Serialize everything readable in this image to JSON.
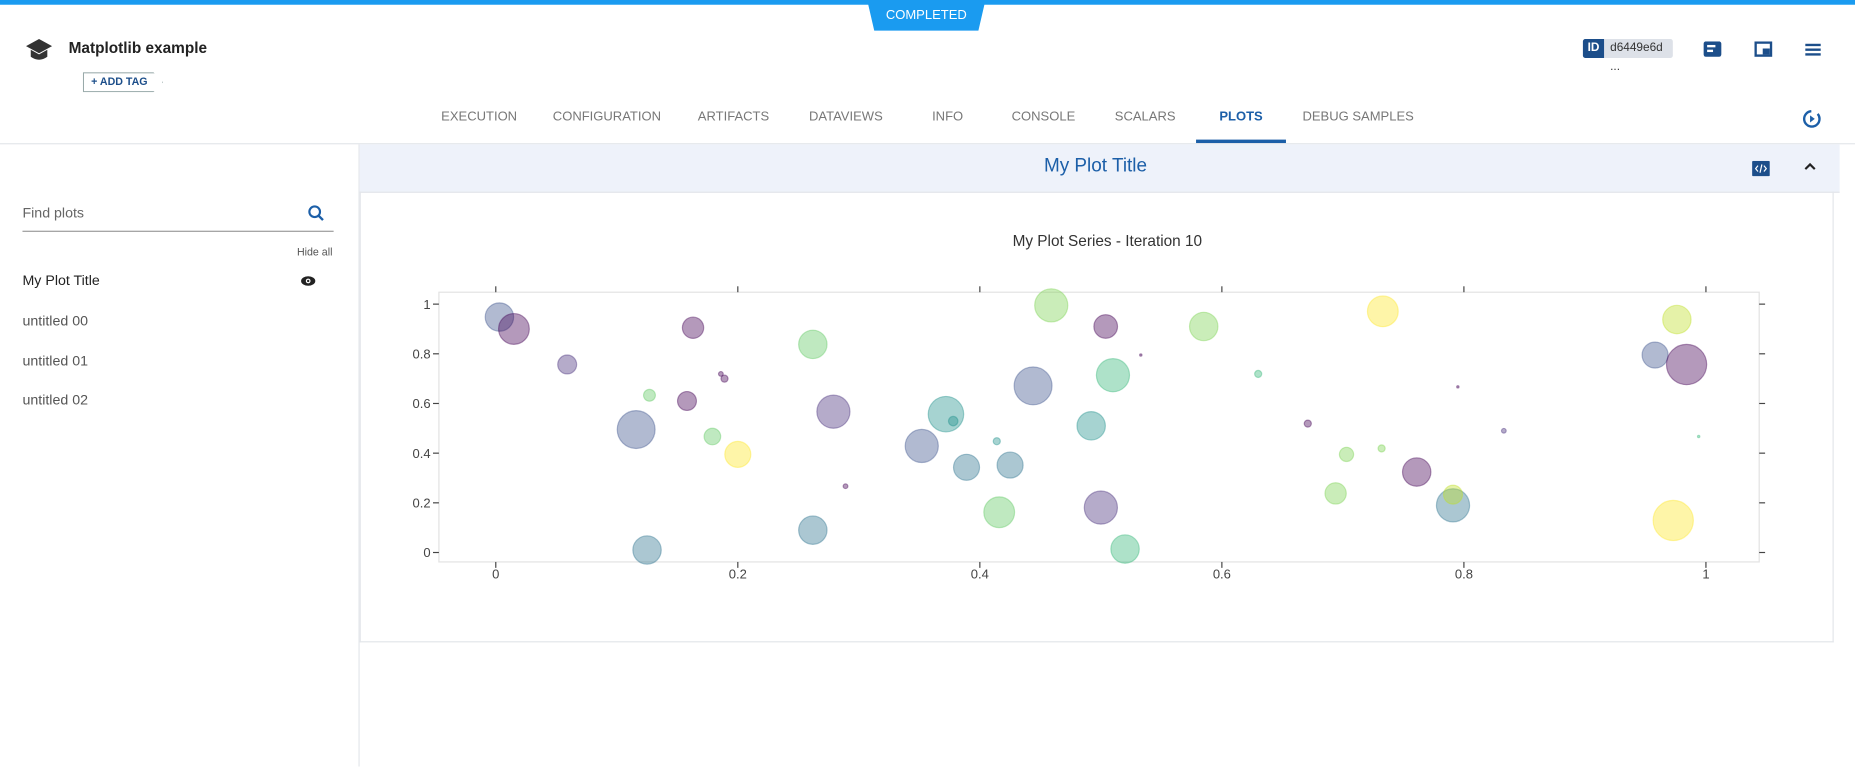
{
  "header": {
    "status": "COMPLETED",
    "title": "Matplotlib example",
    "add_tag": "+ ADD TAG",
    "id_label": "ID",
    "id_value": "d6449e6d ..."
  },
  "tabs": [
    "EXECUTION",
    "CONFIGURATION",
    "ARTIFACTS",
    "DATAVIEWS",
    "INFO",
    "CONSOLE",
    "SCALARS",
    "PLOTS",
    "DEBUG SAMPLES"
  ],
  "active_tab_index": 7,
  "sidebar": {
    "search_placeholder": "Find plots",
    "hide_all": "Hide all",
    "items": [
      "My Plot Title",
      "untitled 00",
      "untitled 01",
      "untitled 02"
    ]
  },
  "panel": {
    "title": "My Plot Title"
  },
  "chart_data": {
    "type": "scatter",
    "title": "My Plot Series - Iteration 10",
    "x": [
      0.003,
      0.015,
      0.059,
      0.163,
      0.127,
      0.116,
      0.158,
      0.186,
      0.189,
      0.179,
      0.2,
      0.125,
      0.262,
      0.279,
      0.289,
      0.262,
      0.352,
      0.372,
      0.378,
      0.389,
      0.414,
      0.425,
      0.416,
      0.444,
      0.459,
      0.504,
      0.51,
      0.492,
      0.5,
      0.52,
      0.533,
      0.585,
      0.63,
      0.671,
      0.703,
      0.694,
      0.732,
      0.733,
      0.761,
      0.791,
      0.791,
      0.795,
      0.833,
      0.958,
      0.984,
      0.976,
      0.994,
      0.973
    ],
    "values": [
      0.948,
      0.9,
      0.757,
      0.905,
      0.633,
      0.495,
      0.61,
      0.719,
      0.7,
      0.467,
      0.395,
      0.01,
      0.838,
      0.567,
      0.267,
      0.09,
      0.429,
      0.557,
      0.529,
      0.343,
      0.448,
      0.352,
      0.162,
      0.671,
      0.995,
      0.91,
      0.714,
      0.51,
      0.181,
      0.014,
      0.795,
      0.91,
      0.719,
      0.519,
      0.395,
      0.238,
      0.419,
      0.971,
      0.324,
      0.19,
      0.233,
      0.667,
      0.49,
      0.795,
      0.757,
      0.938,
      0.467,
      0.129
    ],
    "sizes": [
      24,
      26,
      16,
      18,
      10,
      32,
      16,
      4,
      6,
      14,
      22,
      24,
      24,
      28,
      4,
      24,
      28,
      30,
      8,
      22,
      6,
      22,
      26,
      32,
      28,
      20,
      28,
      24,
      28,
      24,
      2,
      24,
      6,
      6,
      12,
      18,
      6,
      26,
      24,
      28,
      16,
      2,
      4,
      22,
      34,
      24,
      2,
      34
    ],
    "colors": [
      "#3b528b",
      "#440154",
      "#472d7b",
      "#440154",
      "#5ec962",
      "#3b528b",
      "#440154",
      "#440154",
      "#440154",
      "#5ec962",
      "#fde725",
      "#2c728e",
      "#5ec962",
      "#472d7b",
      "#440154",
      "#2c728e",
      "#3b528b",
      "#21918c",
      "#21918c",
      "#2c728e",
      "#21918c",
      "#2c728e",
      "#5ec962",
      "#3b528b",
      "#7ad151",
      "#440154",
      "#35b779",
      "#21918c",
      "#472d7b",
      "#35b779",
      "#440154",
      "#7ad151",
      "#35b779",
      "#440154",
      "#7ad151",
      "#7ad151",
      "#7ad151",
      "#fde725",
      "#440154",
      "#2c728e",
      "#bddf26",
      "#440154",
      "#472d7b",
      "#3b528b",
      "#440154",
      "#bddf26",
      "#35b779",
      "#fde725"
    ],
    "opacity": 0.4,
    "xlim": [
      -0.047,
      1.044
    ],
    "ylim": [
      -0.038,
      1.048
    ],
    "xticks": [
      0,
      0.2,
      0.4,
      0.6,
      0.8,
      1
    ],
    "yticks": [
      0,
      0.2,
      0.4,
      0.6,
      0.8,
      1
    ]
  }
}
